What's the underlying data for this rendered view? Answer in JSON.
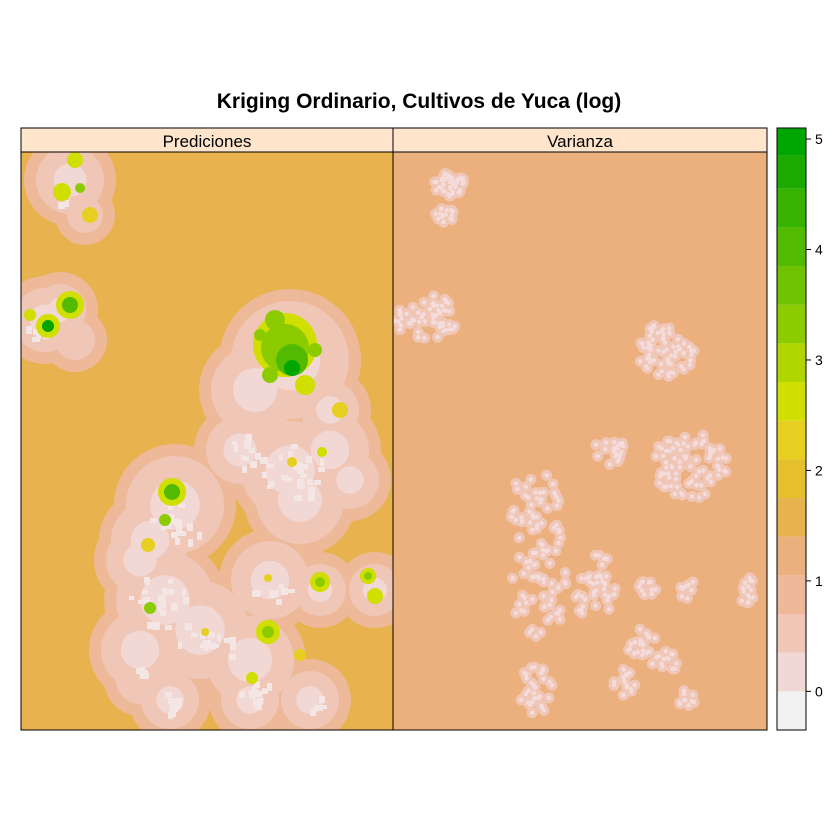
{
  "chart_data": {
    "type": "heatmap",
    "title": "Kriging Ordinario,  Cultivos de  Yuca (log)",
    "panels": [
      {
        "name": "panel-predicciones",
        "label": "Prediciones"
      },
      {
        "name": "panel-varianza",
        "label": "Varianza"
      }
    ],
    "colorbar": {
      "range": [
        -0.35,
        5.1
      ],
      "levels": [
        {
          "from": -0.35,
          "to": 0.0,
          "color": "#F2F2F2"
        },
        {
          "from": 0.0,
          "to": 0.35,
          "color": "#F2D8D4"
        },
        {
          "from": 0.35,
          "to": 0.7,
          "color": "#F0C6B6"
        },
        {
          "from": 0.7,
          "to": 1.05,
          "color": "#EDB999"
        },
        {
          "from": 1.05,
          "to": 1.4,
          "color": "#EBB07E"
        },
        {
          "from": 1.4,
          "to": 1.75,
          "color": "#E8B24E"
        },
        {
          "from": 1.75,
          "to": 2.1,
          "color": "#E5C02C"
        },
        {
          "from": 2.1,
          "to": 2.45,
          "color": "#E6CF20"
        },
        {
          "from": 2.45,
          "to": 2.8,
          "color": "#D0DE00"
        },
        {
          "from": 2.8,
          "to": 3.15,
          "color": "#B0D600"
        },
        {
          "from": 3.15,
          "to": 3.5,
          "color": "#8CCB00"
        },
        {
          "from": 3.5,
          "to": 3.85,
          "color": "#6EC200"
        },
        {
          "from": 3.85,
          "to": 4.2,
          "color": "#52BA00"
        },
        {
          "from": 4.2,
          "to": 4.55,
          "color": "#36B200"
        },
        {
          "from": 4.55,
          "to": 4.85,
          "color": "#1CAA00"
        },
        {
          "from": 4.85,
          "to": 5.1,
          "color": "#00A600"
        }
      ],
      "ticks": [
        {
          "value": 0,
          "label": "0"
        },
        {
          "value": 1,
          "label": "1"
        },
        {
          "value": 2,
          "label": "2"
        },
        {
          "value": 3,
          "label": "3"
        },
        {
          "value": 4,
          "label": "4"
        },
        {
          "value": 5,
          "label": "5"
        }
      ]
    },
    "colors": {
      "strip_bg": "#FFE5CC",
      "pred_background": "#E8B24E",
      "var_background": "#EBB07E",
      "halo_far": "#EDB999",
      "halo_mid": "#F0C6B6",
      "halo_near": "#F2D8D4",
      "low_values": "#F5E6E6",
      "var_points": "#F5DCDC",
      "pred_hot": "#00A600",
      "pred_high": "#52BA00",
      "pred_mid": "#8CCB00",
      "pred_low": "#D0DE00",
      "pred_lowest": "#E6CF20"
    }
  }
}
